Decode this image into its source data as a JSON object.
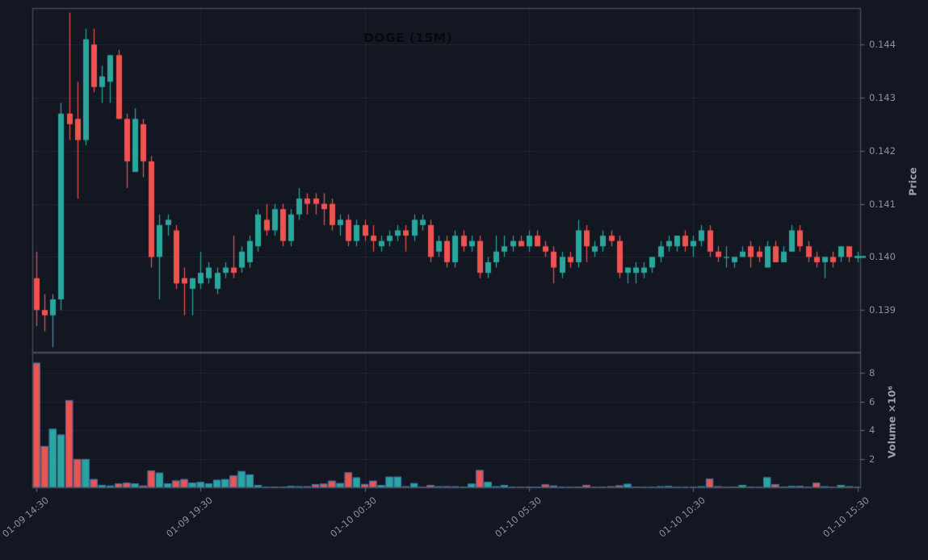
{
  "title": "DOGE (15M)",
  "colors": {
    "background": "#131722",
    "up": "#2aa79c",
    "down": "#ef5350",
    "grid": "rgba(255,255,255,0.055)",
    "spine": "#444b58",
    "tick_mark": "#5c6370",
    "tick_text": "#8d919b",
    "axis_label_text": "#9aa0aa",
    "title_text": "#07090d",
    "volume_bar_edge": "#3876b4",
    "last_price_marker": "#2aa79c"
  },
  "chart_data": {
    "type": "candlestick",
    "symbol": "DOGE",
    "interval": "15M",
    "legend_position": "none",
    "grid": true,
    "price_axis": {
      "label": "Price",
      "side": "right",
      "ticks": [
        0.139,
        0.14,
        0.141,
        0.142,
        0.143,
        0.144
      ],
      "tick_labels": [
        "0.139",
        "0.140",
        "0.141",
        "0.142",
        "0.143",
        "0.144"
      ],
      "range": [
        0.13821,
        0.14468
      ]
    },
    "volume_axis": {
      "label": "Volume ×10⁶",
      "side": "right",
      "unit": 1000000,
      "ticks": [
        2,
        4,
        6,
        8
      ],
      "tick_labels": [
        "2",
        "4",
        "6",
        "8"
      ],
      "range": [
        0,
        9350000
      ]
    },
    "x_axis": {
      "tick_labels": [
        "01-09 14:30",
        "01-09 19:30",
        "01-10 00:30",
        "01-10 05:30",
        "01-10 10:30",
        "01-10 15:30"
      ],
      "tick_indices": [
        0,
        20,
        40,
        60,
        80,
        100
      ]
    },
    "last_price": 0.14,
    "columns": [
      "time",
      "open",
      "high",
      "low",
      "close",
      "volume"
    ],
    "candles": [
      [
        "01-09 14:30",
        0.1396,
        0.1401,
        0.1387,
        0.139,
        8700000
      ],
      [
        "01-09 14:45",
        0.139,
        0.1393,
        0.1386,
        0.1389,
        2900000
      ],
      [
        "01-09 15:00",
        0.1389,
        0.1393,
        0.1383,
        0.1392,
        4100000
      ],
      [
        "01-09 15:15",
        0.1392,
        0.1429,
        0.139,
        0.1427,
        3700000
      ],
      [
        "01-09 15:30",
        0.1427,
        0.1446,
        0.1422,
        0.1425,
        6100000
      ],
      [
        "01-09 15:45",
        0.1426,
        0.1433,
        0.1411,
        0.1422,
        2000000
      ],
      [
        "01-09 16:00",
        0.1422,
        0.1443,
        0.1421,
        0.1441,
        2000000
      ],
      [
        "01-09 16:15",
        0.144,
        0.1443,
        0.1431,
        0.1432,
        600000
      ],
      [
        "01-09 16:30",
        0.1432,
        0.1436,
        0.1429,
        0.1434,
        200000
      ],
      [
        "01-09 16:45",
        0.1433,
        0.1438,
        0.1429,
        0.1438,
        150000
      ],
      [
        "01-09 17:00",
        0.1438,
        0.1439,
        0.1426,
        0.1426,
        300000
      ],
      [
        "01-09 17:15",
        0.1426,
        0.1427,
        0.1413,
        0.1418,
        350000
      ],
      [
        "01-09 17:30",
        0.1416,
        0.1428,
        0.1416,
        0.1426,
        300000
      ],
      [
        "01-09 17:45",
        0.1425,
        0.1426,
        0.1415,
        0.1418,
        150000
      ],
      [
        "01-09 18:00",
        0.1418,
        0.1419,
        0.1398,
        0.14,
        1200000
      ],
      [
        "01-09 18:15",
        0.14,
        0.1408,
        0.1392,
        0.1406,
        1050000
      ],
      [
        "01-09 18:30",
        0.1406,
        0.1408,
        0.1404,
        0.1407,
        300000
      ],
      [
        "01-09 18:45",
        0.1405,
        0.1406,
        0.1394,
        0.1395,
        500000
      ],
      [
        "01-09 19:00",
        0.1396,
        0.1398,
        0.1389,
        0.1395,
        600000
      ],
      [
        "01-09 19:15",
        0.1394,
        0.1396,
        0.1389,
        0.1396,
        350000
      ],
      [
        "01-09 19:30",
        0.1395,
        0.1401,
        0.1394,
        0.1397,
        400000
      ],
      [
        "01-09 19:45",
        0.1396,
        0.1399,
        0.1395,
        0.1398,
        300000
      ],
      [
        "01-09 20:00",
        0.1394,
        0.1398,
        0.1393,
        0.1397,
        550000
      ],
      [
        "01-09 20:15",
        0.1397,
        0.1399,
        0.1396,
        0.1398,
        600000
      ],
      [
        "01-09 20:30",
        0.1398,
        0.1404,
        0.1396,
        0.1397,
        850000
      ],
      [
        "01-09 20:45",
        0.1398,
        0.1402,
        0.1397,
        0.1401,
        1160000
      ],
      [
        "01-09 21:00",
        0.1399,
        0.1404,
        0.1398,
        0.1403,
        930000
      ],
      [
        "01-09 21:15",
        0.1402,
        0.1409,
        0.1401,
        0.1408,
        190000
      ],
      [
        "01-09 21:30",
        0.1407,
        0.141,
        0.1404,
        0.1405,
        80000
      ],
      [
        "01-09 21:45",
        0.1405,
        0.141,
        0.1404,
        0.1409,
        80000
      ],
      [
        "01-09 22:00",
        0.1409,
        0.141,
        0.1402,
        0.1403,
        80000
      ],
      [
        "01-09 22:15",
        0.1403,
        0.1409,
        0.1402,
        0.1408,
        120000
      ],
      [
        "01-09 22:30",
        0.1408,
        0.1413,
        0.1407,
        0.1411,
        100000
      ],
      [
        "01-09 22:45",
        0.1411,
        0.1412,
        0.1408,
        0.141,
        100000
      ],
      [
        "01-09 23:00",
        0.1411,
        0.1412,
        0.1408,
        0.141,
        250000
      ],
      [
        "01-09 23:15",
        0.141,
        0.1412,
        0.1406,
        0.1409,
        280000
      ],
      [
        "01-09 23:30",
        0.141,
        0.1411,
        0.1405,
        0.1406,
        490000
      ],
      [
        "01-09 23:45",
        0.1406,
        0.1408,
        0.1404,
        0.1407,
        320000
      ],
      [
        "01-10 00:00",
        0.1407,
        0.1408,
        0.1402,
        0.1403,
        1070000
      ],
      [
        "01-10 00:15",
        0.1403,
        0.1407,
        0.1402,
        0.1406,
        720000
      ],
      [
        "01-10 00:30",
        0.1406,
        0.1407,
        0.1403,
        0.1404,
        260000
      ],
      [
        "01-10 00:45",
        0.1404,
        0.1406,
        0.1401,
        0.1403,
        490000
      ],
      [
        "01-10 01:00",
        0.1402,
        0.1404,
        0.1401,
        0.1403,
        190000
      ],
      [
        "01-10 01:15",
        0.1403,
        0.1405,
        0.1402,
        0.1404,
        770000
      ],
      [
        "01-10 01:30",
        0.1404,
        0.1406,
        0.1403,
        0.1405,
        770000
      ],
      [
        "01-10 01:45",
        0.1405,
        0.1406,
        0.1401,
        0.1404,
        100000
      ],
      [
        "01-10 02:00",
        0.1404,
        0.1408,
        0.1403,
        0.1407,
        320000
      ],
      [
        "01-10 02:15",
        0.1406,
        0.1408,
        0.1405,
        0.1407,
        60000
      ],
      [
        "01-10 02:30",
        0.1406,
        0.1407,
        0.1399,
        0.14,
        180000
      ],
      [
        "01-10 02:45",
        0.1401,
        0.1404,
        0.14,
        0.1403,
        100000
      ],
      [
        "01-10 03:00",
        0.1403,
        0.1404,
        0.1398,
        0.1399,
        100000
      ],
      [
        "01-10 03:15",
        0.1399,
        0.1405,
        0.1398,
        0.1404,
        100000
      ],
      [
        "01-10 03:30",
        0.1404,
        0.1405,
        0.1401,
        0.1402,
        80000
      ],
      [
        "01-10 03:45",
        0.1402,
        0.1404,
        0.1401,
        0.1403,
        280000
      ],
      [
        "01-10 04:00",
        0.1403,
        0.1404,
        0.1396,
        0.1397,
        1230000
      ],
      [
        "01-10 04:15",
        0.1397,
        0.14,
        0.1396,
        0.1399,
        420000
      ],
      [
        "01-10 04:30",
        0.1399,
        0.1404,
        0.1398,
        0.1401,
        100000
      ],
      [
        "01-10 04:45",
        0.1401,
        0.1404,
        0.14,
        0.1402,
        180000
      ],
      [
        "01-10 05:00",
        0.1402,
        0.1404,
        0.1401,
        0.1403,
        80000
      ],
      [
        "01-10 05:15",
        0.1403,
        0.1404,
        0.1402,
        0.1402,
        50000
      ],
      [
        "01-10 05:30",
        0.1402,
        0.1405,
        0.1401,
        0.1404,
        80000
      ],
      [
        "01-10 05:45",
        0.1404,
        0.1405,
        0.1402,
        0.1402,
        80000
      ],
      [
        "01-10 06:00",
        0.1402,
        0.1403,
        0.14,
        0.1401,
        230000
      ],
      [
        "01-10 06:15",
        0.1401,
        0.1402,
        0.1395,
        0.1398,
        150000
      ],
      [
        "01-10 06:30",
        0.1397,
        0.1401,
        0.1396,
        0.14,
        80000
      ],
      [
        "01-10 06:45",
        0.14,
        0.1401,
        0.1398,
        0.1399,
        50000
      ],
      [
        "01-10 07:00",
        0.1399,
        0.1407,
        0.1398,
        0.1405,
        80000
      ],
      [
        "01-10 07:15",
        0.1405,
        0.1406,
        0.1399,
        0.1402,
        200000
      ],
      [
        "01-10 07:30",
        0.1401,
        0.1403,
        0.14,
        0.1402,
        60000
      ],
      [
        "01-10 07:45",
        0.1402,
        0.1405,
        0.1401,
        0.1404,
        80000
      ],
      [
        "01-10 08:00",
        0.1404,
        0.1405,
        0.1402,
        0.1403,
        100000
      ],
      [
        "01-10 08:15",
        0.1403,
        0.1404,
        0.1396,
        0.1397,
        160000
      ],
      [
        "01-10 08:30",
        0.1397,
        0.1398,
        0.1395,
        0.1398,
        270000
      ],
      [
        "01-10 08:45",
        0.1397,
        0.1399,
        0.1395,
        0.1398,
        80000
      ],
      [
        "01-10 09:00",
        0.1397,
        0.1399,
        0.1396,
        0.1398,
        60000
      ],
      [
        "01-10 09:15",
        0.1398,
        0.14,
        0.1397,
        0.14,
        60000
      ],
      [
        "01-10 09:30",
        0.14,
        0.1403,
        0.1399,
        0.1402,
        100000
      ],
      [
        "01-10 09:45",
        0.1402,
        0.1404,
        0.1401,
        0.1403,
        120000
      ],
      [
        "01-10 10:00",
        0.1402,
        0.1404,
        0.1401,
        0.1404,
        60000
      ],
      [
        "01-10 10:15",
        0.1404,
        0.1405,
        0.1401,
        0.1402,
        50000
      ],
      [
        "01-10 10:30",
        0.1402,
        0.1404,
        0.14,
        0.1403,
        50000
      ],
      [
        "01-10 10:45",
        0.1403,
        0.1406,
        0.1402,
        0.1405,
        100000
      ],
      [
        "01-10 11:00",
        0.1405,
        0.1406,
        0.14,
        0.1401,
        630000
      ],
      [
        "01-10 11:15",
        0.1401,
        0.1402,
        0.1399,
        0.14,
        100000
      ],
      [
        "01-10 11:30",
        0.14,
        0.1402,
        0.1398,
        0.14,
        60000
      ],
      [
        "01-10 11:45",
        0.1399,
        0.14,
        0.1398,
        0.14,
        80000
      ],
      [
        "01-10 12:00",
        0.14,
        0.1402,
        0.14,
        0.1401,
        200000
      ],
      [
        "01-10 12:15",
        0.1402,
        0.1403,
        0.1398,
        0.14,
        80000
      ],
      [
        "01-10 12:30",
        0.1401,
        0.1402,
        0.1399,
        0.14,
        60000
      ],
      [
        "01-10 12:45",
        0.1398,
        0.1403,
        0.1398,
        0.1402,
        730000
      ],
      [
        "01-10 13:00",
        0.1402,
        0.1403,
        0.1399,
        0.1399,
        240000
      ],
      [
        "01-10 13:15",
        0.1399,
        0.1402,
        0.1399,
        0.1401,
        80000
      ],
      [
        "01-10 13:30",
        0.1401,
        0.1406,
        0.1401,
        0.1405,
        120000
      ],
      [
        "01-10 13:45",
        0.1405,
        0.1406,
        0.1401,
        0.1402,
        120000
      ],
      [
        "01-10 14:00",
        0.1402,
        0.1403,
        0.1399,
        0.14,
        60000
      ],
      [
        "01-10 14:15",
        0.14,
        0.1401,
        0.1398,
        0.1399,
        350000
      ],
      [
        "01-10 14:30",
        0.1399,
        0.14,
        0.1396,
        0.14,
        100000
      ],
      [
        "01-10 14:45",
        0.14,
        0.1401,
        0.1398,
        0.1399,
        60000
      ],
      [
        "01-10 15:00",
        0.14,
        0.1402,
        0.1399,
        0.1402,
        200000
      ],
      [
        "01-10 15:15",
        0.1402,
        0.1402,
        0.1399,
        0.14,
        100000
      ],
      [
        "01-10 15:30",
        0.14,
        0.1401,
        0.1399,
        0.14,
        50000
      ]
    ]
  }
}
